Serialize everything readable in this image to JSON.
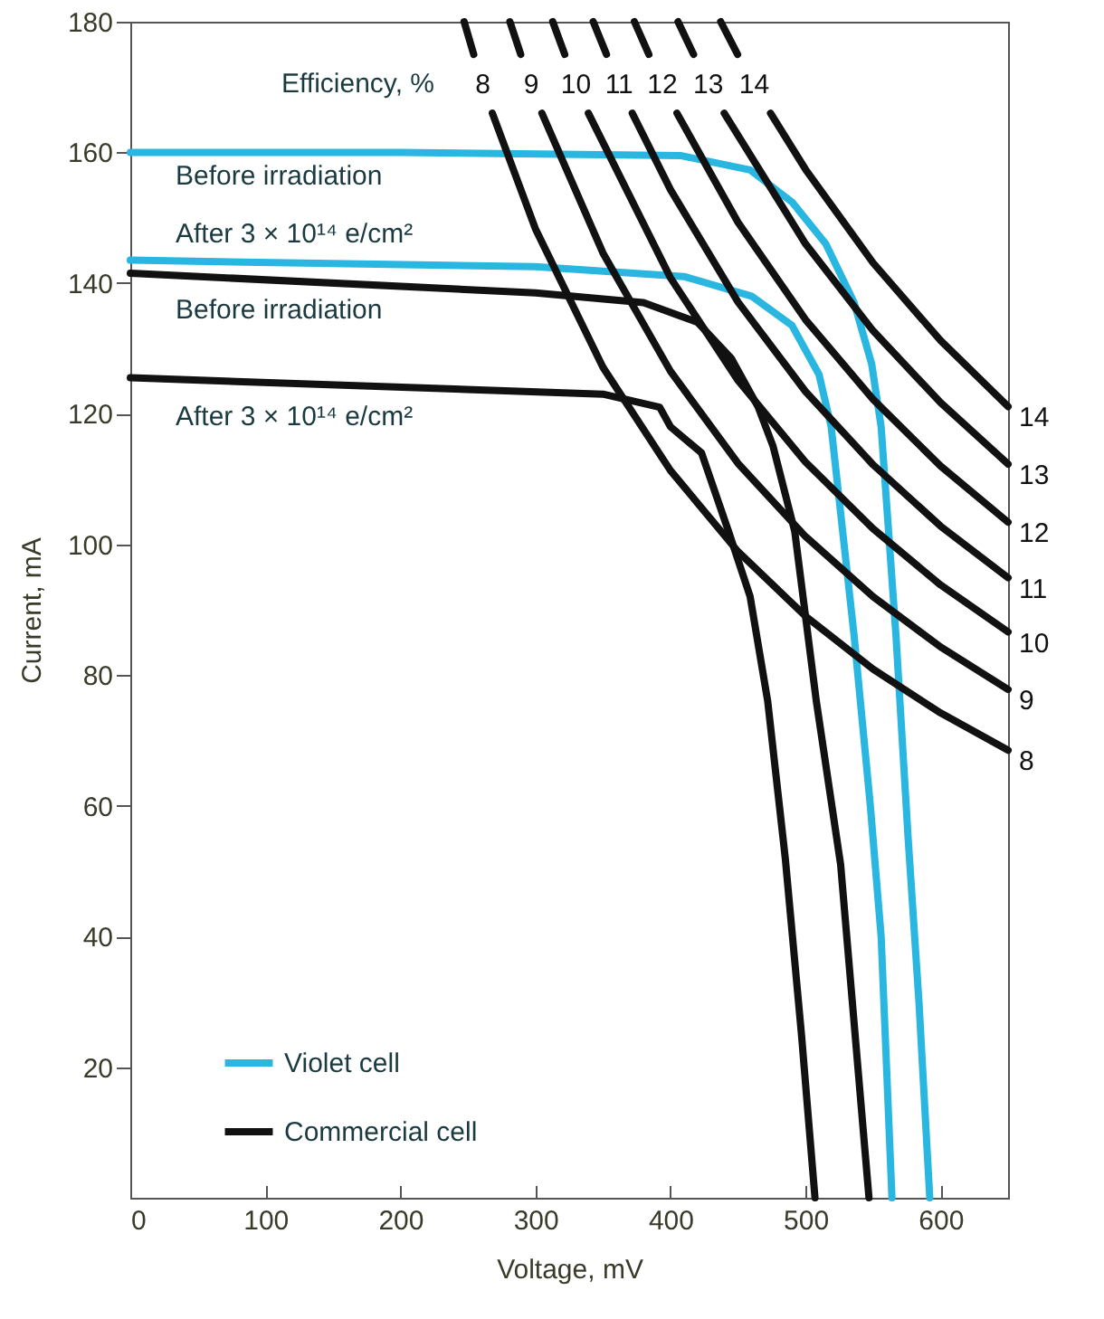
{
  "chart_data": {
    "type": "line",
    "xlabel": "Voltage, mV",
    "ylabel": "Current, mA",
    "xlim": [
      0,
      650
    ],
    "ylim": [
      0,
      180
    ],
    "xticks": [
      0,
      100,
      200,
      300,
      400,
      500,
      600
    ],
    "yticks": [
      20,
      40,
      60,
      80,
      100,
      120,
      140,
      160,
      180
    ],
    "grid": false,
    "legend": "bottom left",
    "line_style": "solid",
    "series": [
      {
        "name": "Violet cell",
        "color": "#29b6e0",
        "x": [
          0,
          200,
          408,
          459,
          490,
          515,
          536,
          549,
          556,
          567,
          576,
          584,
          592
        ],
        "values": [
          160,
          160,
          159.5,
          157.3,
          152.4,
          146,
          137,
          127.6,
          118,
          86,
          55,
          30,
          0
        ]
      },
      {
        "color": "#29b6e0",
        "x": [
          0,
          300,
          410,
          460,
          490,
          510,
          519,
          536,
          548,
          556,
          564
        ],
        "values": [
          143.5,
          142.5,
          141,
          138,
          133.5,
          126,
          118,
          86,
          60,
          40,
          0
        ]
      },
      {
        "name": "Commercial cell",
        "color": "#111111",
        "x": [
          0,
          300,
          380,
          420,
          445,
          465,
          476,
          492,
          508,
          526,
          547
        ],
        "values": [
          141.5,
          138.5,
          137,
          134,
          128.5,
          121,
          115,
          102,
          76,
          51,
          0
        ]
      },
      {
        "color": "#111111",
        "x": [
          0,
          350,
          392,
          400,
          423,
          443,
          459,
          472,
          485,
          497,
          507
        ],
        "values": [
          125.5,
          123,
          121,
          118,
          114,
          102,
          92,
          76,
          52,
          25,
          0
        ]
      },
      {
        "name": "8",
        "color": "#111111",
        "x": [
          247.2,
          254.3,
          261,
          268.1,
          300,
          350,
          400,
          450,
          500,
          550,
          600,
          650
        ],
        "values": [
          180,
          175,
          null,
          166,
          148.3,
          127.1,
          111.3,
          98.9,
          89,
          80.9,
          74.2,
          68.5
        ]
      },
      {
        "name": "9",
        "color": "#111111",
        "x": [
          281.1,
          289.1,
          297,
          304.8,
          350,
          400,
          450,
          500,
          550,
          600,
          650
        ],
        "values": [
          180,
          175,
          null,
          166,
          144.6,
          126.5,
          112.4,
          101.2,
          92,
          84.3,
          77.8
        ]
      },
      {
        "name": "10",
        "color": "#111111",
        "x": [
          312.8,
          321.7,
          330,
          339.2,
          400,
          450,
          500,
          550,
          600,
          650
        ],
        "values": [
          180,
          175,
          null,
          166,
          140.8,
          125.1,
          112.6,
          102.4,
          93.8,
          86.6
        ]
      },
      {
        "name": "11",
        "color": "#111111",
        "x": [
          342.8,
          352.6,
          362,
          371.7,
          400,
          450,
          500,
          550,
          600,
          650
        ],
        "values": [
          180,
          175,
          null,
          166,
          154.3,
          137.1,
          123.4,
          112.2,
          102.8,
          94.9
        ]
      },
      {
        "name": "12",
        "color": "#111111",
        "x": [
          373.3,
          384,
          394,
          404.8,
          450,
          500,
          550,
          600,
          650
        ],
        "values": [
          180,
          175,
          null,
          166,
          149.3,
          134.4,
          122.2,
          112,
          103.4
        ]
      },
      {
        "name": "13",
        "color": "#111111",
        "x": [
          405.6,
          417.1,
          428,
          439.8,
          500,
          550,
          600,
          650
        ],
        "values": [
          180,
          175,
          null,
          166,
          146,
          132.7,
          121.7,
          112.3
        ]
      },
      {
        "name": "14",
        "color": "#111111",
        "x": [
          437.2,
          449.7,
          462,
          474.1,
          500,
          550,
          600,
          650
        ],
        "values": [
          180,
          175,
          null,
          166,
          157.4,
          143.1,
          131.2,
          121.1
        ]
      }
    ],
    "annotations": [
      "Efficiency, %",
      "Before irradiation",
      "After 3 × 10¹⁴ e/cm²",
      "Before irradiation",
      "After 3 × 10¹⁴ e/cm²"
    ]
  }
}
